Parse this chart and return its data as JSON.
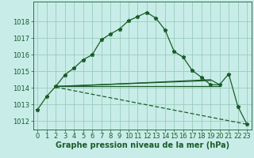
{
  "bg_color": "#c8ede8",
  "grid_color": "#99ccbb",
  "line_color": "#1a5c2a",
  "xlabel": "Graphe pression niveau de la mer (hPa)",
  "xlabel_fontsize": 7.0,
  "tick_fontsize": 6.0,
  "ylim": [
    1011.5,
    1019.2
  ],
  "xlim": [
    -0.5,
    23.5
  ],
  "yticks": [
    1012,
    1013,
    1014,
    1015,
    1016,
    1017,
    1018
  ],
  "xticks": [
    0,
    1,
    2,
    3,
    4,
    5,
    6,
    7,
    8,
    9,
    10,
    11,
    12,
    13,
    14,
    15,
    16,
    17,
    18,
    19,
    20,
    21,
    22,
    23
  ],
  "main_x": [
    0,
    1,
    2,
    3,
    4,
    5,
    6,
    7,
    8,
    9,
    10,
    11,
    12,
    13,
    14,
    15,
    16,
    17,
    18,
    19,
    20,
    21,
    22,
    23
  ],
  "main_y": [
    1012.7,
    1013.5,
    1014.1,
    1014.8,
    1015.2,
    1015.7,
    1016.0,
    1016.9,
    1017.25,
    1017.55,
    1018.05,
    1018.3,
    1018.55,
    1018.2,
    1017.5,
    1016.2,
    1015.85,
    1015.05,
    1014.65,
    1014.2,
    1014.2,
    1014.85,
    1012.9,
    1011.82
  ],
  "line2_x": [
    2,
    3,
    19,
    20
  ],
  "line2_y": [
    1014.1,
    1014.1,
    1014.5,
    1014.2
  ],
  "line3_x": [
    2,
    20
  ],
  "line3_y": [
    1014.1,
    1014.1
  ],
  "line4_x": [
    2,
    19
  ],
  "line4_y": [
    1014.1,
    1014.45
  ],
  "decline_x": [
    2,
    23
  ],
  "decline_y": [
    1014.05,
    1011.82
  ]
}
